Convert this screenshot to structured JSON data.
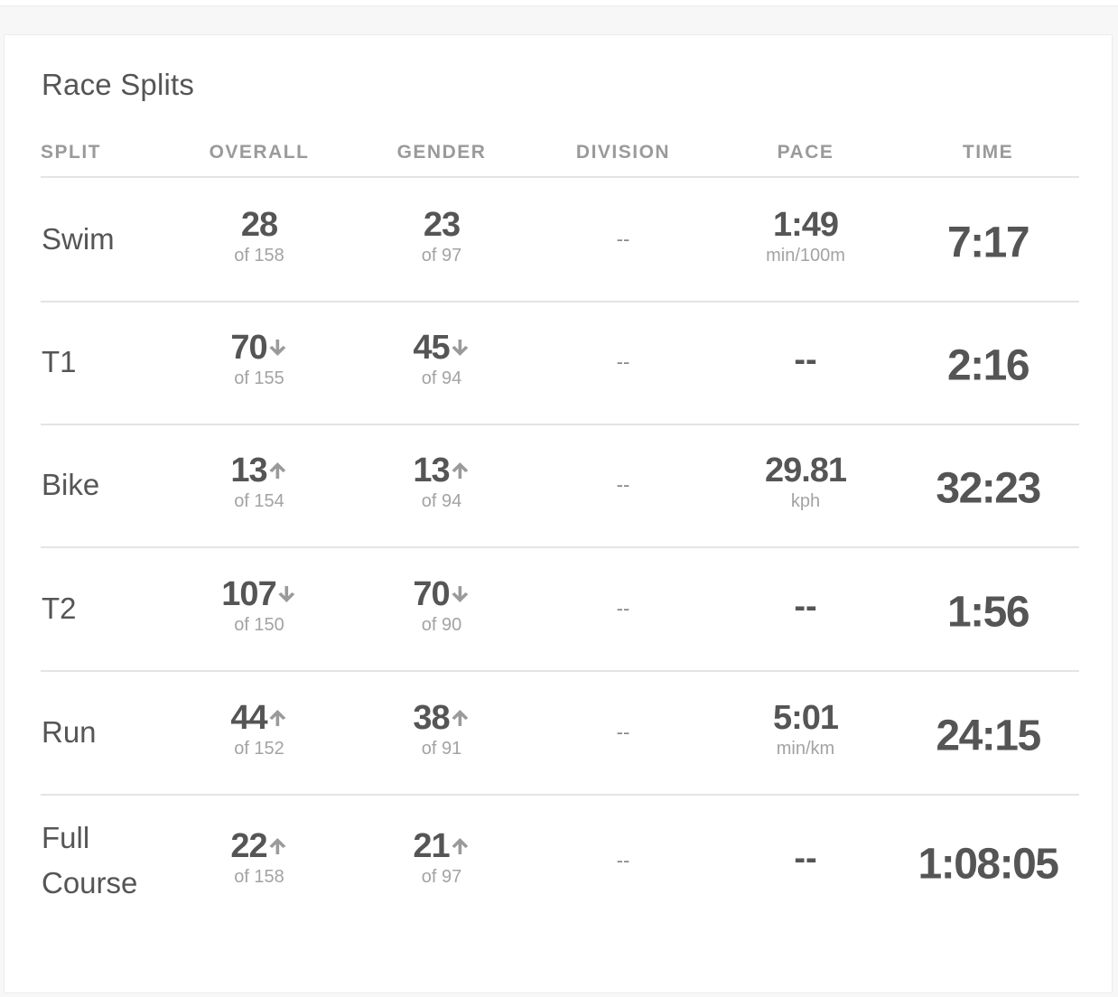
{
  "title": "Race Splits",
  "headers": {
    "split": "SPLIT",
    "overall": "OVERALL",
    "gender": "GENDER",
    "division": "DIVISION",
    "pace": "PACE",
    "time": "TIME"
  },
  "rows": [
    {
      "split": "Swim",
      "overall": {
        "rank": "28",
        "of": "of 158",
        "trend": "none"
      },
      "gender": {
        "rank": "23",
        "of": "of 97",
        "trend": "none"
      },
      "division": "--",
      "pace": {
        "value": "1:49",
        "unit": "min/100m"
      },
      "time": "7:17"
    },
    {
      "split": "T1",
      "overall": {
        "rank": "70",
        "of": "of 155",
        "trend": "down"
      },
      "gender": {
        "rank": "45",
        "of": "of 94",
        "trend": "down"
      },
      "division": "--",
      "pace": {
        "value": "--",
        "unit": ""
      },
      "time": "2:16"
    },
    {
      "split": "Bike",
      "overall": {
        "rank": "13",
        "of": "of 154",
        "trend": "up"
      },
      "gender": {
        "rank": "13",
        "of": "of 94",
        "trend": "up"
      },
      "division": "--",
      "pace": {
        "value": "29.81",
        "unit": "kph"
      },
      "time": "32:23"
    },
    {
      "split": "T2",
      "overall": {
        "rank": "107",
        "of": "of 150",
        "trend": "down"
      },
      "gender": {
        "rank": "70",
        "of": "of 90",
        "trend": "down"
      },
      "division": "--",
      "pace": {
        "value": "--",
        "unit": ""
      },
      "time": "1:56"
    },
    {
      "split": "Run",
      "overall": {
        "rank": "44",
        "of": "of 152",
        "trend": "up"
      },
      "gender": {
        "rank": "38",
        "of": "of 91",
        "trend": "up"
      },
      "division": "--",
      "pace": {
        "value": "5:01",
        "unit": "min/km"
      },
      "time": "24:15"
    },
    {
      "split": "Full Course",
      "overall": {
        "rank": "22",
        "of": "of 158",
        "trend": "up"
      },
      "gender": {
        "rank": "21",
        "of": "of 97",
        "trend": "up"
      },
      "division": "--",
      "pace": {
        "value": "--",
        "unit": ""
      },
      "time": "1:08:05"
    }
  ],
  "colors": {
    "text": "#555555",
    "muted": "#a3a3a3",
    "arrow": "#9a9a9a",
    "divider": "#e4e4e4"
  }
}
